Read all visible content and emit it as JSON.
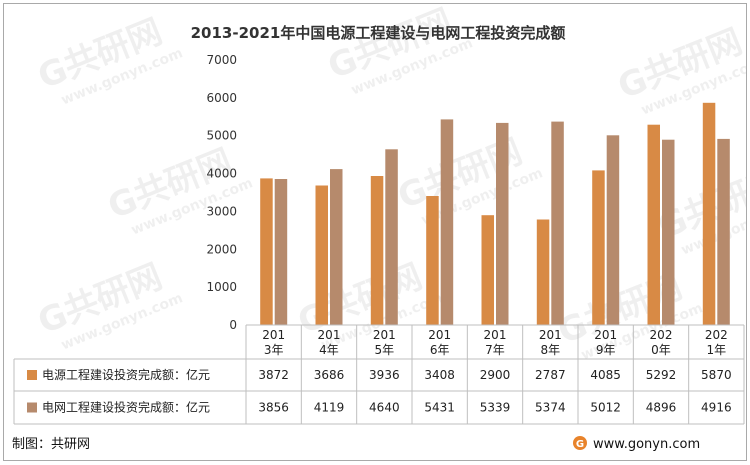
{
  "chart_data": {
    "type": "bar",
    "title": "2013-2021年中国电源工程建设与电网工程投资完成额",
    "categories": [
      [
        "201",
        "3年"
      ],
      [
        "201",
        "4年"
      ],
      [
        "201",
        "5年"
      ],
      [
        "201",
        "6年"
      ],
      [
        "201",
        "7年"
      ],
      [
        "201",
        "8年"
      ],
      [
        "201",
        "9年"
      ],
      [
        "202",
        "0年"
      ],
      [
        "202",
        "1年"
      ]
    ],
    "series": [
      {
        "name": "电源工程建设投资完成额：亿元",
        "color": "#d88a45",
        "values": [
          3872,
          3686,
          3936,
          3408,
          2900,
          2787,
          4085,
          5292,
          5870
        ]
      },
      {
        "name": "电网工程建设投资完成额：亿元",
        "color": "#b68a6c",
        "values": [
          3856,
          4119,
          4640,
          5431,
          5339,
          5374,
          5012,
          4896,
          4916
        ]
      }
    ],
    "ylim": [
      0,
      7000
    ],
    "yticks": [
      "0",
      "1000",
      "2000",
      "3000",
      "4000",
      "5000",
      "6000",
      "7000"
    ],
    "grid": false,
    "legend": "data-table",
    "xlabel": "",
    "ylabel": ""
  },
  "footer": {
    "source_label": "制图：共研网",
    "website": "www.gonyn.com"
  },
  "watermark": {
    "brand": "G共研网",
    "url": "www.gonyn.com"
  }
}
